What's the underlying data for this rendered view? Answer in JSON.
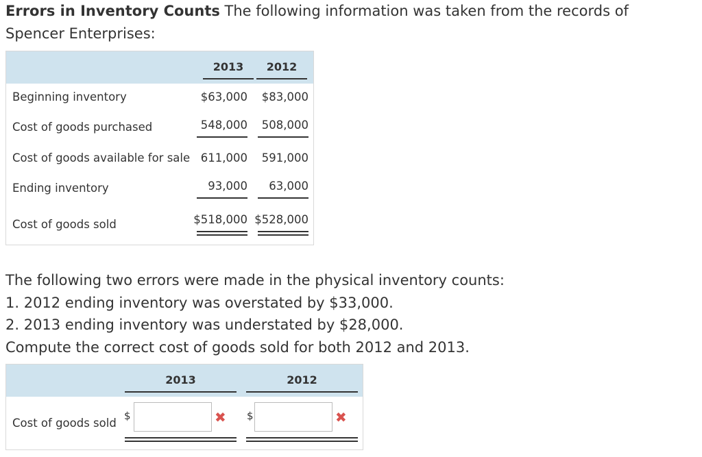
{
  "intro": {
    "title": "Errors in Inventory Counts",
    "text": " The following information was taken from the records of Spencer Enterprises:"
  },
  "table1": {
    "years": [
      "2013",
      "2012"
    ],
    "rows": [
      {
        "label": "Beginning inventory",
        "v2013": "$63,000",
        "v2012": "$83,000"
      },
      {
        "label": "Cost of goods purchased",
        "v2013": "548,000",
        "v2012": "508,000"
      },
      {
        "label": "Cost of goods available for sale",
        "v2013": "611,000",
        "v2012": "591,000"
      },
      {
        "label": "Ending inventory",
        "v2013": "93,000",
        "v2012": "63,000"
      },
      {
        "label": "Cost of goods sold",
        "v2013": "$518,000",
        "v2012": "$528,000"
      }
    ]
  },
  "question": {
    "line1": "The following two errors were made in the physical inventory counts:",
    "line2": "1. 2012 ending inventory was overstated by $33,000.",
    "line3": "2. 2013 ending inventory was understated by $28,000.",
    "line4": "Compute the correct cost of goods sold for both 2012 and 2013."
  },
  "answer": {
    "years": [
      "2013",
      "2012"
    ],
    "row_label": "Cost of goods sold",
    "currency": "$",
    "input_2013": "",
    "input_2012": "",
    "status_icon": "x-mark-icon",
    "status_color": "#d9534f"
  }
}
